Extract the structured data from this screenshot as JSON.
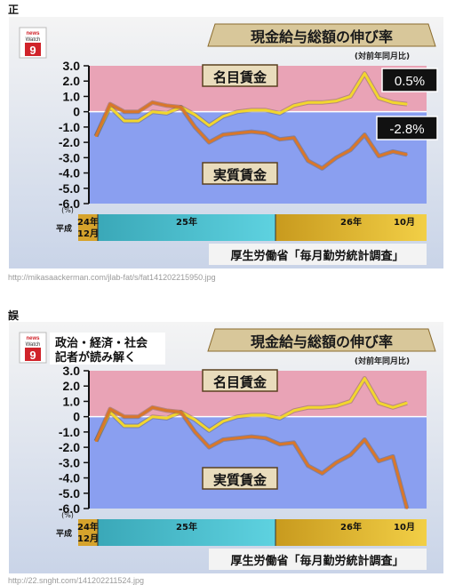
{
  "page": {
    "label_correct": "正",
    "label_wrong": "誤",
    "caption_correct": "http://mikasaackerman.com/jlab-fat/s/fat141202215950.jpg",
    "caption_wrong": "http://22.snght.com/141202211524.jpg"
  },
  "panels": [
    {
      "logo_top": "news",
      "logo_mid": "Watch",
      "logo_num": "9",
      "side_title_1": "",
      "side_title_2": "",
      "title": "現金給与総額の伸び率",
      "subtitle": "(対前年同月比)",
      "zone_nominal": "名目賃金",
      "zone_real": "実質賃金",
      "callout_nominal": "0.5%",
      "callout_real": "-2.8%",
      "source": "厚生労働省「毎月勤労統計調査」",
      "x_year_24": "24年",
      "x_month_12": "12月",
      "x_heisei": "平成",
      "x_year_25": "25年",
      "x_year_26": "26年",
      "x_month_10": "10月",
      "y_unit": "(%)",
      "colors": {
        "nominal": "#f2d62e",
        "real": "#d9772a",
        "pink_bg": "#e9a3b6",
        "blue_bg": "#8a9ff0"
      },
      "chart_data": {
        "type": "line",
        "ylim": [
          -6.0,
          3.0
        ],
        "y_ticks": [
          "3.0",
          "2.0",
          "1.0",
          "0",
          "-1.0",
          "-2.0",
          "-3.0",
          "-4.0",
          "-5.0",
          "-6.0"
        ],
        "series": [
          {
            "name": "名目賃金",
            "values": [
              -1.6,
              0.3,
              -0.6,
              -0.6,
              0.0,
              -0.1,
              0.3,
              -0.2,
              -0.9,
              -0.3,
              0.0,
              0.1,
              0.1,
              -0.1,
              0.4,
              0.6,
              0.6,
              0.7,
              1.0,
              2.5,
              0.9,
              0.6,
              0.5
            ]
          },
          {
            "name": "実質賃金",
            "values": [
              -1.6,
              0.5,
              0.0,
              0.0,
              0.6,
              0.4,
              0.3,
              -1.0,
              -2.0,
              -1.5,
              -1.4,
              -1.3,
              -1.4,
              -1.8,
              -1.7,
              -3.2,
              -3.7,
              -3.0,
              -2.5,
              -1.5,
              -2.9,
              -2.6,
              -2.8
            ]
          }
        ]
      }
    },
    {
      "logo_top": "news",
      "logo_mid": "Watch",
      "logo_num": "9",
      "side_title_1": "政治・経済・社会",
      "side_title_2": "記者が読み解く",
      "title": "現金給与総額の伸び率",
      "subtitle": "(対前年同月比)",
      "zone_nominal": "名目賃金",
      "zone_real": "実質賃金",
      "callout_nominal": "",
      "callout_real": "",
      "source": "厚生労働省「毎月勤労統計調査」",
      "x_year_24": "24年",
      "x_month_12": "12月",
      "x_heisei": "平成",
      "x_year_25": "25年",
      "x_year_26": "26年",
      "x_month_10": "10月",
      "y_unit": "(%)",
      "colors": {
        "nominal": "#f2d62e",
        "real": "#d9772a",
        "pink_bg": "#e9a3b6",
        "blue_bg": "#8a9ff0"
      },
      "chart_data": {
        "type": "line",
        "ylim": [
          -6.0,
          3.0
        ],
        "y_ticks": [
          "3.0",
          "2.0",
          "1.0",
          "0",
          "-1.0",
          "-2.0",
          "-3.0",
          "-4.0",
          "-5.0",
          "-6.0"
        ],
        "series": [
          {
            "name": "名目賃金",
            "values": [
              -1.6,
              0.3,
              -0.6,
              -0.6,
              0.0,
              -0.1,
              0.3,
              -0.2,
              -0.9,
              -0.3,
              0.0,
              0.1,
              0.1,
              -0.1,
              0.4,
              0.6,
              0.6,
              0.7,
              1.0,
              2.5,
              0.9,
              0.6,
              0.9
            ]
          },
          {
            "name": "実質賃金",
            "values": [
              -1.6,
              0.5,
              0.0,
              0.0,
              0.6,
              0.4,
              0.3,
              -1.0,
              -2.0,
              -1.5,
              -1.4,
              -1.3,
              -1.4,
              -1.8,
              -1.7,
              -3.2,
              -3.7,
              -3.0,
              -2.5,
              -1.5,
              -2.9,
              -2.6,
              -6.0
            ]
          }
        ]
      }
    }
  ]
}
